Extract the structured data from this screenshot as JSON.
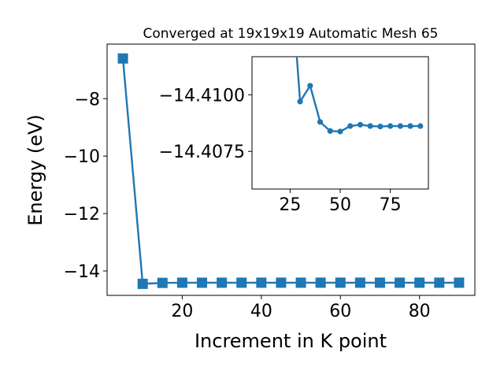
{
  "chart_data": [
    {
      "type": "line",
      "title": "Converged at 19x19x19 Automatic Mesh 65",
      "xlabel": "Increment in K point",
      "ylabel": "Energy (eV)",
      "xlim": [
        1,
        94
      ],
      "ylim": [
        -14.85,
        -6.1
      ],
      "xticks": [
        20,
        40,
        60,
        80
      ],
      "yticks": [
        -14,
        -12,
        -10,
        -8
      ],
      "ytick_labels": [
        "−14",
        "−12",
        "−10",
        "−8"
      ],
      "marker": "square",
      "color": "#1f77b4",
      "grid": false,
      "series": [
        {
          "x": [
            5,
            10,
            15,
            20,
            25,
            30,
            35,
            40,
            45,
            50,
            55,
            60,
            65,
            70,
            75,
            80,
            85,
            90
          ],
          "values": [
            -6.6,
            -14.4488,
            -14.4157,
            -14.4097,
            -14.4098,
            -14.4097,
            -14.4097,
            -14.4088,
            -14.4084,
            -14.4084,
            -14.4086,
            -14.4085,
            -14.4086,
            -14.4086,
            -14.4086,
            -14.4086,
            -14.4086,
            -14.4086
          ]
        }
      ]
    },
    {
      "type": "line",
      "role": "inset",
      "xlim": [
        6,
        94
      ],
      "ylim": [
        -14.40584,
        -14.41168
      ],
      "xticks": [
        25,
        50,
        75
      ],
      "yticks": [
        -14.41,
        -14.4075
      ],
      "ytick_labels": [
        "−14.4100",
        "−14.4075"
      ],
      "marker": "circle",
      "color": "#1f77b4",
      "grid": false,
      "series": [
        {
          "x": [
            25,
            30,
            35,
            40,
            45,
            50,
            55,
            60,
            65,
            70,
            75,
            80,
            85,
            90
          ],
          "values": [
            -14.4157,
            -14.4097,
            -14.4104,
            -14.4088,
            -14.4084,
            -14.40838,
            -14.40862,
            -14.40868,
            -14.40862,
            -14.4086,
            -14.40862,
            -14.40862,
            -14.40862,
            -14.40862
          ]
        }
      ]
    }
  ]
}
